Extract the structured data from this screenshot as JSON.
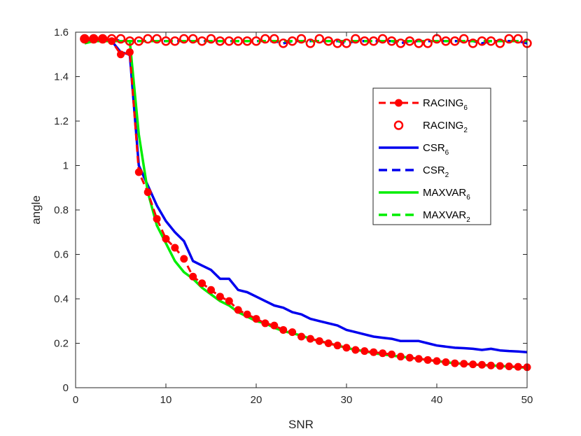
{
  "chart_data": {
    "type": "line",
    "title": "",
    "xlabel": "SNR",
    "ylabel": "angle",
    "xlim": [
      0,
      50
    ],
    "ylim": [
      0,
      1.6
    ],
    "xticks": [
      0,
      10,
      20,
      30,
      40,
      50
    ],
    "yticks": [
      0,
      0.2,
      0.4,
      0.6,
      0.8,
      1,
      1.2,
      1.4,
      1.6
    ],
    "xtick_labels": [
      "0",
      "10",
      "20",
      "30",
      "40",
      "50"
    ],
    "ytick_labels": [
      "0",
      "0.2",
      "0.4",
      "0.6",
      "0.8",
      "1",
      "1.2",
      "1.4",
      "1.6"
    ],
    "grid": false,
    "legend_position": "right",
    "x": [
      1,
      2,
      3,
      4,
      5,
      6,
      7,
      8,
      9,
      10,
      11,
      12,
      13,
      14,
      15,
      16,
      17,
      18,
      19,
      20,
      21,
      22,
      23,
      24,
      25,
      26,
      27,
      28,
      29,
      30,
      31,
      32,
      33,
      34,
      35,
      36,
      37,
      38,
      39,
      40,
      41,
      42,
      43,
      44,
      45,
      46,
      47,
      48,
      49,
      50
    ],
    "series": [
      {
        "name": "RACING6",
        "label_main": "RACING",
        "label_sub": "6",
        "color": "#ff0000",
        "style": "dashed-dot",
        "values": [
          1.57,
          1.57,
          1.57,
          1.56,
          1.5,
          1.51,
          0.97,
          0.88,
          0.76,
          0.67,
          0.63,
          0.58,
          0.5,
          0.47,
          0.44,
          0.41,
          0.39,
          0.35,
          0.33,
          0.31,
          0.29,
          0.28,
          0.26,
          0.25,
          0.23,
          0.22,
          0.21,
          0.2,
          0.19,
          0.18,
          0.17,
          0.165,
          0.16,
          0.155,
          0.15,
          0.14,
          0.135,
          0.13,
          0.125,
          0.12,
          0.115,
          0.11,
          0.108,
          0.105,
          0.103,
          0.1,
          0.098,
          0.096,
          0.094,
          0.092
        ]
      },
      {
        "name": "RACING2",
        "label_main": "RACING",
        "label_sub": "2",
        "color": "#ff0000",
        "style": "circle",
        "values": [
          1.57,
          1.57,
          1.57,
          1.57,
          1.57,
          1.56,
          1.56,
          1.57,
          1.57,
          1.56,
          1.56,
          1.57,
          1.57,
          1.56,
          1.57,
          1.56,
          1.56,
          1.56,
          1.56,
          1.56,
          1.57,
          1.57,
          1.55,
          1.56,
          1.57,
          1.55,
          1.57,
          1.56,
          1.55,
          1.55,
          1.57,
          1.56,
          1.56,
          1.57,
          1.56,
          1.55,
          1.56,
          1.55,
          1.55,
          1.57,
          1.56,
          1.56,
          1.57,
          1.55,
          1.56,
          1.56,
          1.55,
          1.57,
          1.57,
          1.55
        ]
      },
      {
        "name": "CSR6",
        "label_main": "CSR",
        "label_sub": "6",
        "color": "#0000ee",
        "style": "solid",
        "values": [
          1.56,
          1.56,
          1.57,
          1.56,
          1.51,
          1.5,
          1.0,
          0.91,
          0.82,
          0.75,
          0.7,
          0.66,
          0.57,
          0.55,
          0.53,
          0.49,
          0.49,
          0.44,
          0.43,
          0.41,
          0.39,
          0.37,
          0.36,
          0.34,
          0.33,
          0.31,
          0.3,
          0.29,
          0.28,
          0.26,
          0.25,
          0.24,
          0.23,
          0.225,
          0.22,
          0.21,
          0.21,
          0.21,
          0.2,
          0.19,
          0.185,
          0.18,
          0.178,
          0.175,
          0.17,
          0.175,
          0.168,
          0.165,
          0.163,
          0.16
        ]
      },
      {
        "name": "CSR2",
        "label_main": "CSR",
        "label_sub": "2",
        "color": "#0000ee",
        "style": "dashed",
        "values": [
          1.56,
          1.56,
          1.56,
          1.57,
          1.56,
          1.56,
          1.56,
          1.56,
          1.56,
          1.56,
          1.56,
          1.56,
          1.56,
          1.56,
          1.56,
          1.56,
          1.56,
          1.56,
          1.56,
          1.56,
          1.56,
          1.56,
          1.55,
          1.56,
          1.56,
          1.56,
          1.56,
          1.56,
          1.56,
          1.55,
          1.56,
          1.56,
          1.56,
          1.56,
          1.56,
          1.55,
          1.56,
          1.56,
          1.56,
          1.56,
          1.56,
          1.56,
          1.56,
          1.56,
          1.55,
          1.56,
          1.56,
          1.56,
          1.56,
          1.55
        ]
      },
      {
        "name": "MAXVAR6",
        "label_main": "MAXVAR",
        "label_sub": "6",
        "color": "#00ee00",
        "style": "solid",
        "values": [
          1.55,
          1.56,
          1.56,
          1.56,
          1.56,
          1.56,
          1.14,
          0.88,
          0.73,
          0.65,
          0.57,
          0.52,
          0.49,
          0.45,
          0.42,
          0.39,
          0.37,
          0.34,
          0.32,
          0.3,
          0.29,
          0.27,
          0.255,
          0.245,
          0.235,
          0.22,
          0.21,
          0.2,
          0.19,
          0.18,
          0.17,
          0.165,
          0.155,
          0.15,
          0.145,
          0.14,
          0.135,
          0.13,
          0.125,
          0.12,
          0.115,
          0.11,
          0.108,
          0.105,
          0.102,
          0.1,
          0.098,
          0.095,
          0.092,
          0.09
        ]
      },
      {
        "name": "MAXVAR2",
        "label_main": "MAXVAR",
        "label_sub": "2",
        "color": "#00ee00",
        "style": "dashed",
        "values": [
          1.56,
          1.56,
          1.56,
          1.56,
          1.56,
          1.56,
          1.56,
          1.56,
          1.56,
          1.56,
          1.56,
          1.56,
          1.56,
          1.56,
          1.56,
          1.56,
          1.56,
          1.56,
          1.56,
          1.56,
          1.56,
          1.56,
          1.56,
          1.56,
          1.56,
          1.56,
          1.56,
          1.56,
          1.56,
          1.56,
          1.56,
          1.56,
          1.56,
          1.56,
          1.56,
          1.56,
          1.56,
          1.56,
          1.56,
          1.56,
          1.56,
          1.56,
          1.56,
          1.56,
          1.56,
          1.56,
          1.56,
          1.56,
          1.56,
          1.56
        ]
      }
    ]
  }
}
